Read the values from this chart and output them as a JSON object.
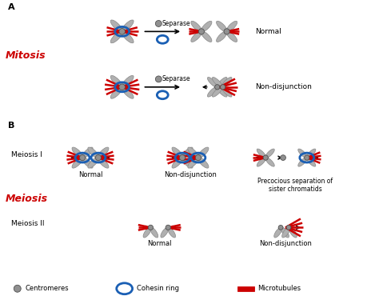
{
  "background_color": "#ffffff",
  "label_A": "A",
  "label_B": "B",
  "label_mitosis": "Mitosis",
  "label_meiosis": "Meiosis",
  "label_meiosis_I": "Meiosis I",
  "label_meiosis_II": "Meiosis II",
  "label_normal_top": "Normal",
  "label_nondisjunction_top": "Non-disjunction",
  "label_normal_mei1": "Normal",
  "label_nondisjunction_mei1": "Non-disjunction",
  "label_precocious": "Precocious separation of\nsister chromatids",
  "label_normal_mei2": "Normal",
  "label_nondisjunction_mei2": "Non-disjunction",
  "label_separase1": "Separase",
  "label_separase2": "Separase",
  "legend_centromeres": "Centromeres",
  "legend_cohesin": "Cohesin ring",
  "legend_microtubules": "Microtubules",
  "chr_color": "#b0b0b0",
  "chr_edge": "#888888",
  "microtubule_color": "#cc0000",
  "cohesin_color": "#1a5fb4",
  "centromere_color": "#909090",
  "mitosis_color": "#cc0000",
  "meiosis_color": "#cc0000",
  "text_color": "#000000",
  "separase_color": "#909090"
}
